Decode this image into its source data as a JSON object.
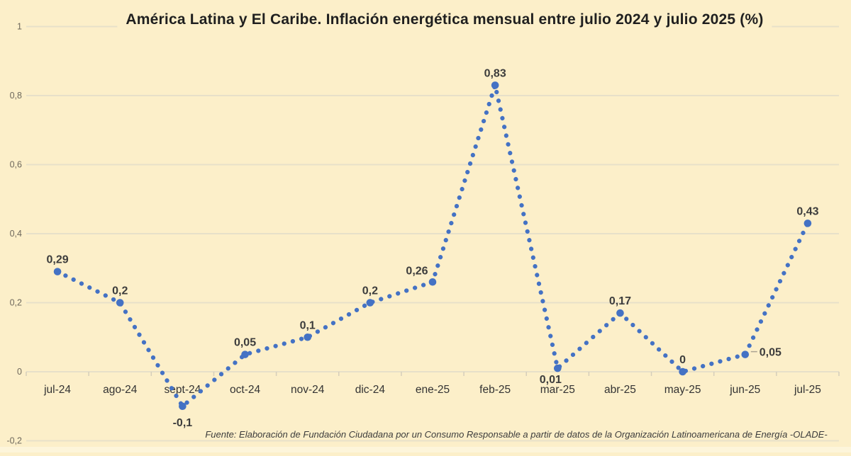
{
  "page": {
    "background_color": "#fcefc9",
    "accent_color": "#4472c4"
  },
  "chart_data": {
    "type": "line",
    "line_style": "dotted",
    "line_color": "#4472c4",
    "grid": true,
    "legend": false,
    "title": "América Latina y El Caribe. Inflación energética mensual entre julio 2024 y julio 2025 (%)",
    "source": "Fuente: Elaboración de Fundación Ciudadana por un Consumo Responsable a partir de datos de la Organización Latinoamericana de Energía -OLADE-",
    "categories": [
      "jul-24",
      "ago-24",
      "sept-24",
      "oct-24",
      "nov-24",
      "dic-24",
      "ene-25",
      "feb-25",
      "mar-25",
      "abr-25",
      "may-25",
      "jun-25",
      "jul-25"
    ],
    "values": [
      0.29,
      0.2,
      -0.1,
      0.05,
      0.1,
      0.2,
      0.26,
      0.83,
      0.01,
      0.17,
      0,
      0.05,
      0.43
    ],
    "point_labels": [
      "0,29",
      "0,2",
      "-0,1",
      "0,05",
      "0,1",
      "0,2",
      "0,26",
      "0,83",
      "0,01",
      "0,17",
      "0",
      "0,05",
      "0,43"
    ],
    "label_positions": [
      "above",
      "above",
      "below",
      "above",
      "above",
      "above",
      "above-left",
      "above",
      "below-near",
      "above",
      "above",
      "right",
      "above"
    ],
    "y_axis": {
      "min": -0.2,
      "max": 1,
      "ticks": [
        1,
        0.8,
        0.6,
        0.4,
        0.2,
        0,
        -0.2
      ],
      "tick_labels": [
        "1",
        "0,8",
        "0,6",
        "0,4",
        "0,2",
        "0",
        "-0,2"
      ]
    }
  }
}
